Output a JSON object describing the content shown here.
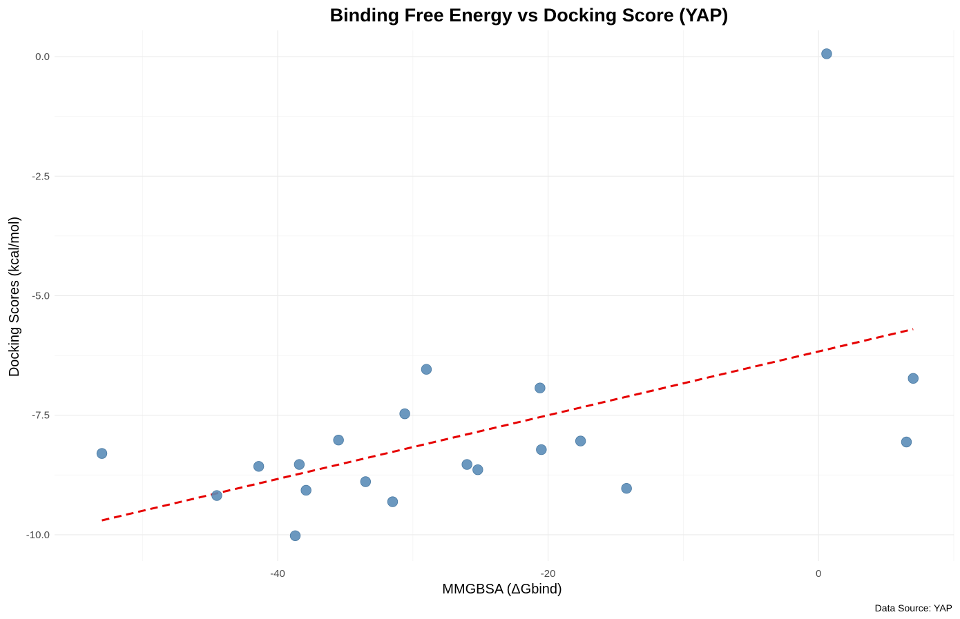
{
  "chart_data": {
    "type": "scatter",
    "title": "Binding Free Energy vs Docking Score (YAP)",
    "xlabel": "MMGBSA (ΔGbind)",
    "ylabel": "Docking Scores (kcal/mol)",
    "caption": "Data Source: YAP",
    "xlim": [
      -56.5,
      10
    ],
    "ylim": [
      -10.55,
      0.55
    ],
    "x_major_ticks": [
      -40,
      -20,
      0
    ],
    "x_minor_ticks": [
      -50,
      -30,
      -10,
      10
    ],
    "y_major_ticks": [
      0.0,
      -2.5,
      -5.0,
      -7.5,
      -10.0
    ],
    "y_minor_ticks": [
      -1.25,
      -3.75,
      -6.25,
      -8.75
    ],
    "x_tick_labels": [
      "-40",
      "-20",
      "0"
    ],
    "y_tick_labels": [
      "0.0",
      "-2.5",
      "-5.0",
      "-7.5",
      "-10.0"
    ],
    "grid": true,
    "point_color": "#5b8db8",
    "trend_color": "#e60000",
    "points": [
      {
        "x": -53.0,
        "y": -8.3
      },
      {
        "x": -44.5,
        "y": -9.18
      },
      {
        "x": -41.4,
        "y": -8.57
      },
      {
        "x": -38.7,
        "y": -10.02
      },
      {
        "x": -38.4,
        "y": -8.53
      },
      {
        "x": -37.9,
        "y": -9.07
      },
      {
        "x": -35.5,
        "y": -8.02
      },
      {
        "x": -33.5,
        "y": -8.89
      },
      {
        "x": -31.5,
        "y": -9.31
      },
      {
        "x": -30.6,
        "y": -7.47
      },
      {
        "x": -29.0,
        "y": -6.54
      },
      {
        "x": -26.0,
        "y": -8.53
      },
      {
        "x": -25.2,
        "y": -8.64
      },
      {
        "x": -20.6,
        "y": -6.93
      },
      {
        "x": -20.5,
        "y": -8.22
      },
      {
        "x": -17.6,
        "y": -8.04
      },
      {
        "x": -14.2,
        "y": -9.03
      },
      {
        "x": 0.6,
        "y": 0.06
      },
      {
        "x": 6.5,
        "y": -8.06
      },
      {
        "x": 7.0,
        "y": -6.73
      }
    ],
    "trend_line": {
      "x": [
        -53.0,
        7.0
      ],
      "y": [
        -9.7,
        -5.7
      ],
      "style": "dashed"
    }
  }
}
